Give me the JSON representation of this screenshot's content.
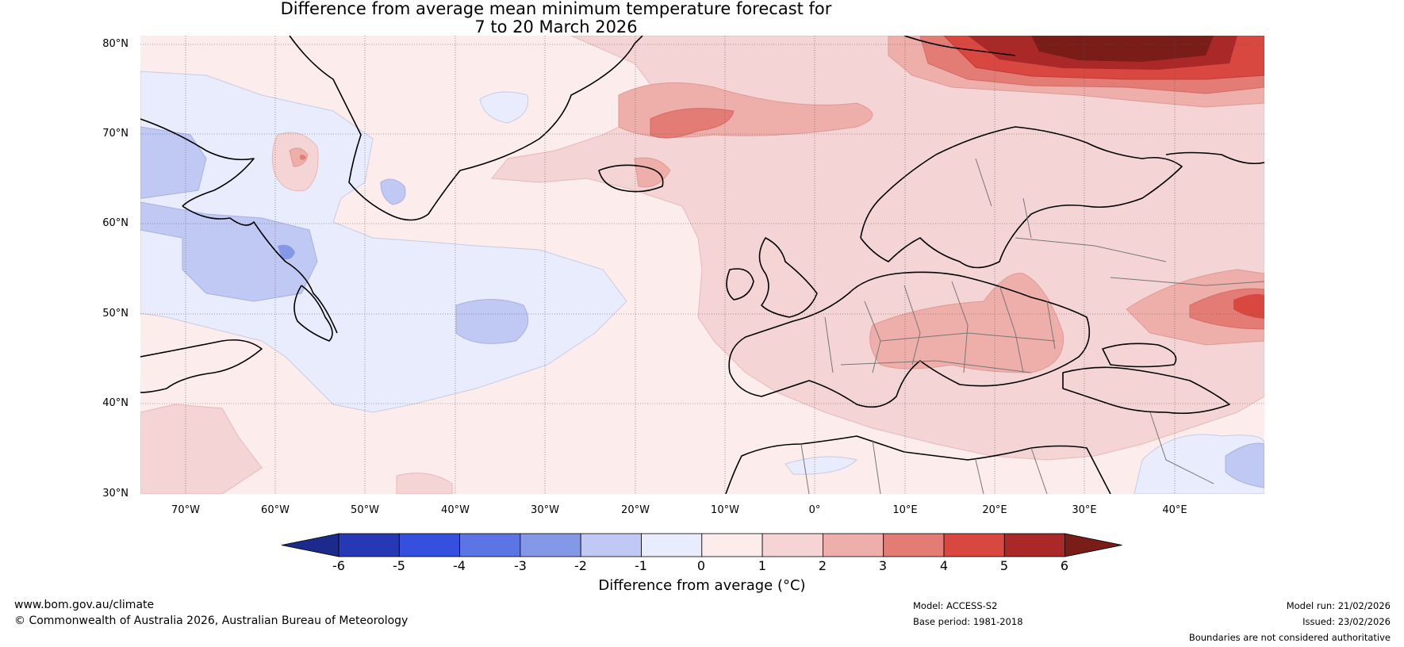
{
  "title": {
    "line1": "Difference from average mean minimum temperature forecast for",
    "line2": "7 to 20 March 2026"
  },
  "map": {
    "lat_labels": [
      "80°N",
      "70°N",
      "60°N",
      "50°N",
      "40°N",
      "30°N"
    ],
    "lon_labels": [
      "70°W",
      "60°W",
      "50°W",
      "40°W",
      "30°W",
      "20°W",
      "10°W",
      "0°",
      "10°E",
      "20°E",
      "30°E",
      "40°E"
    ],
    "extent": {
      "lon_min": -75,
      "lon_max": 50,
      "lat_min": 30,
      "lat_max": 81
    }
  },
  "colorbar": {
    "title": "Difference from average (°C)",
    "ticks": [
      "-6",
      "-5",
      "-4",
      "-3",
      "-2",
      "-1",
      "0",
      "1",
      "2",
      "3",
      "4",
      "5",
      "6"
    ],
    "colors": [
      "#1c2a8c",
      "#2638b4",
      "#3450dc",
      "#5c74e4",
      "#8498e8",
      "#c0c8f4",
      "#e8ecfc",
      "#fcecec",
      "#f4d4d4",
      "#eeaeaa",
      "#e47c76",
      "#d84840",
      "#aa2828",
      "#7a1c18"
    ]
  },
  "footer": {
    "website": "www.bom.gov.au/climate",
    "copyright": "© Commonwealth of Australia 2026, Australian Bureau of Meteorology",
    "model": "Model: ACCESS-S2",
    "base_period": "Base period: 1981-2018",
    "model_run": "Model run: 21/02/2026",
    "issued": "Issued: 23/02/2026",
    "disclaimer": "Boundaries are not considered authoritative"
  }
}
